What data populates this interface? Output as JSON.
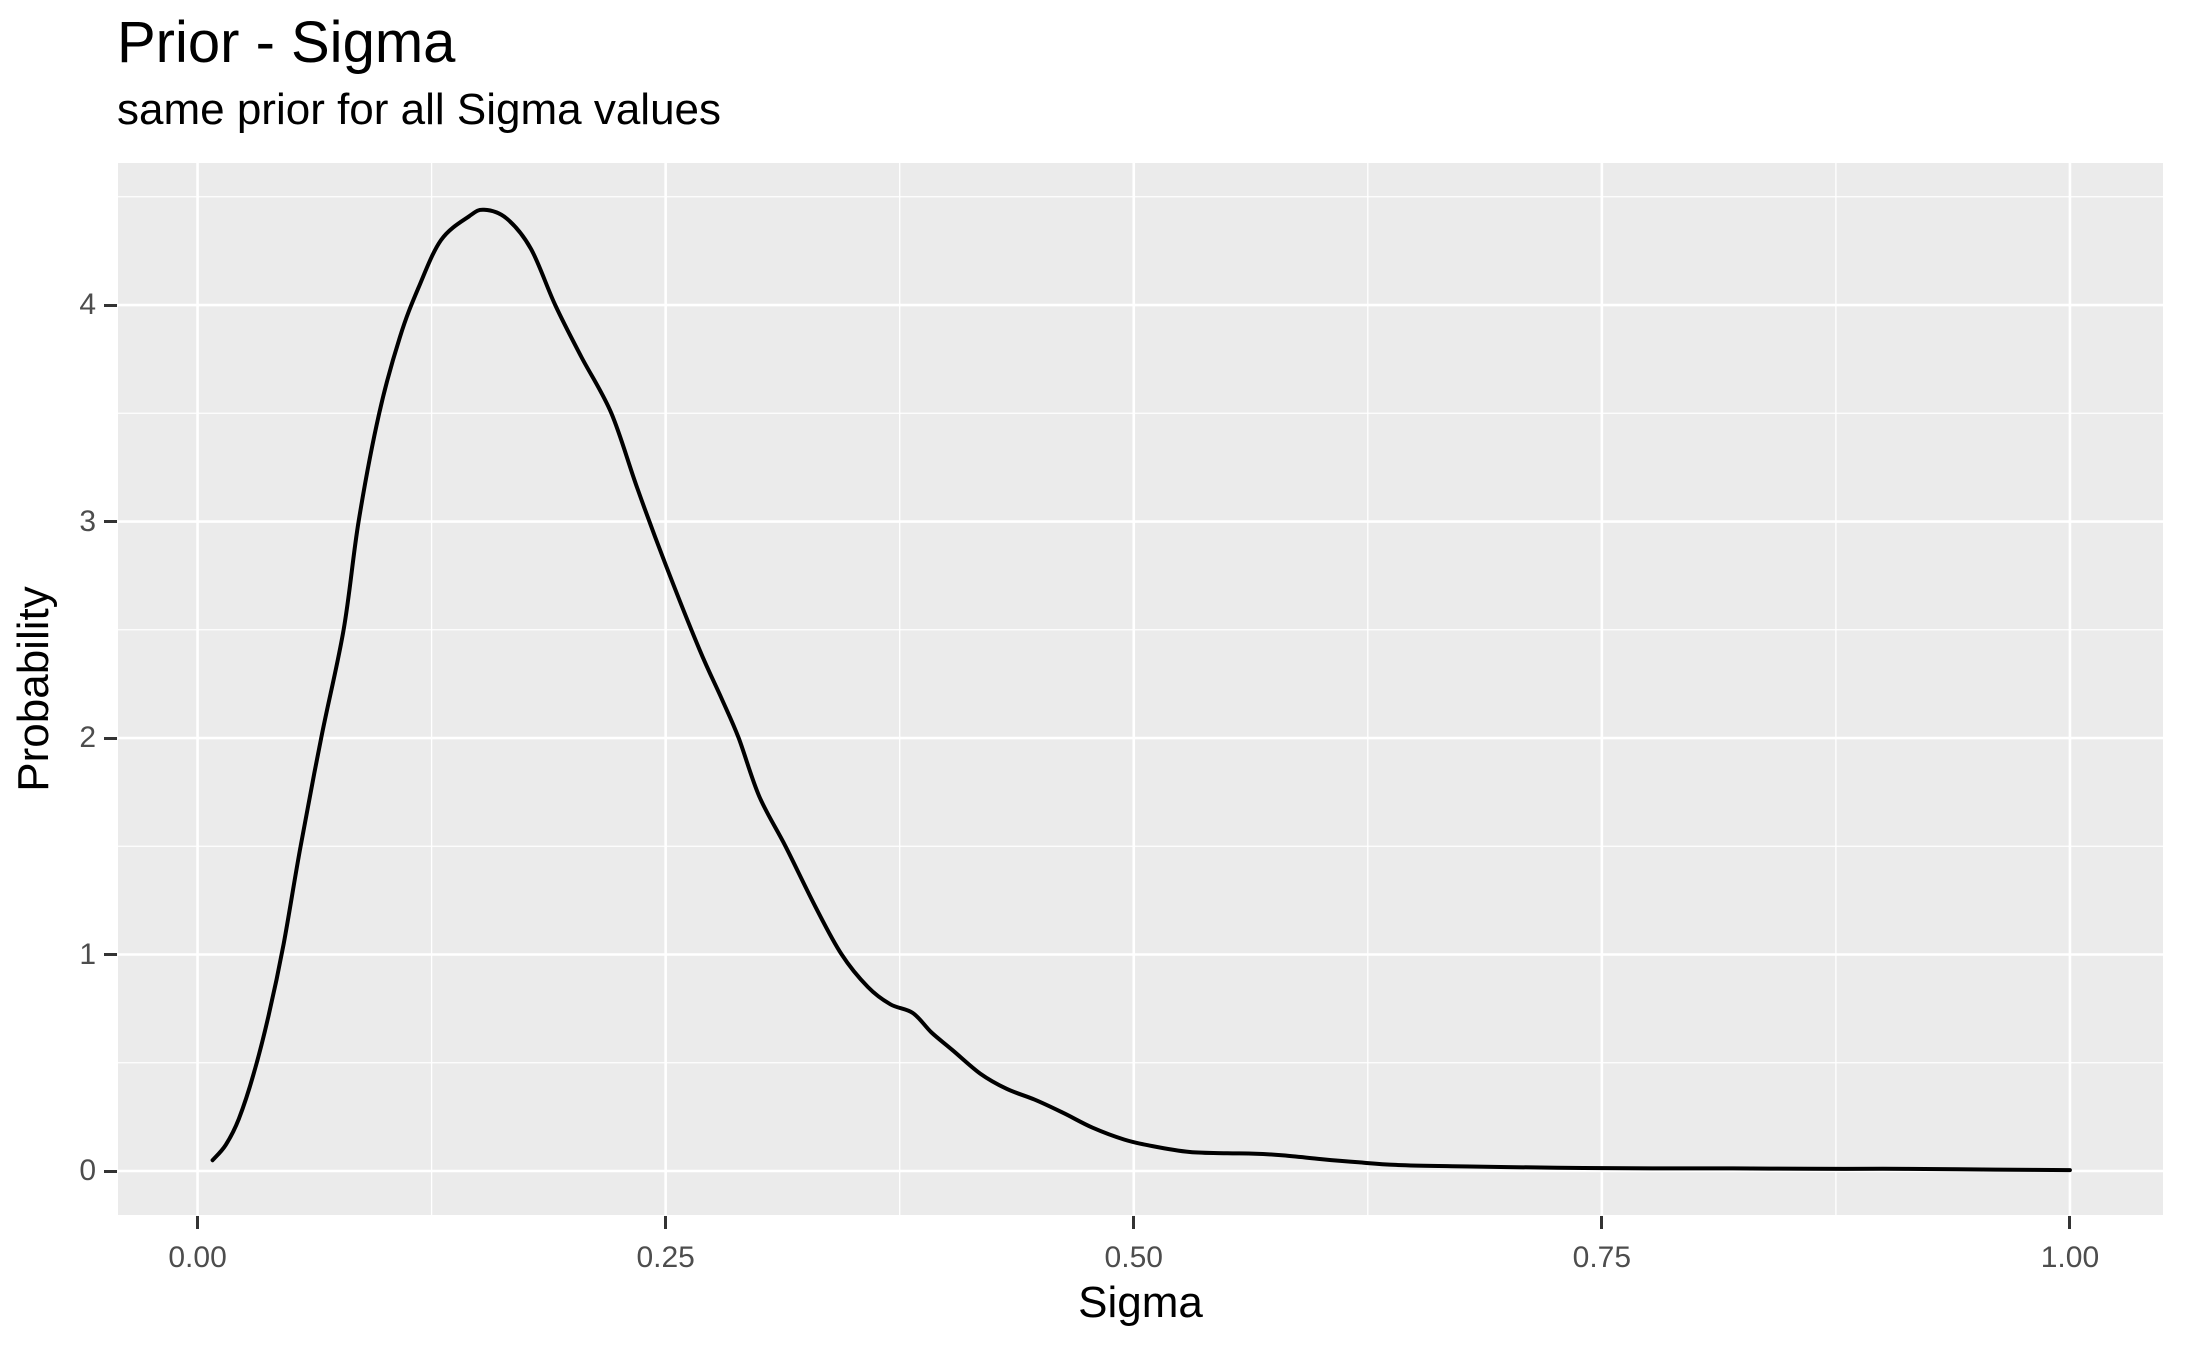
{
  "chart_data": {
    "type": "line",
    "subtype": "density",
    "title": "Prior - Sigma",
    "subtitle": "same prior for all Sigma values",
    "xlabel": "Sigma",
    "ylabel": "Probability",
    "x_domain": [
      -0.0425,
      1.0497
    ],
    "y_domain": [
      -0.2032,
      4.656
    ],
    "x_ticks": [
      {
        "value": 0.0,
        "label": "0.00"
      },
      {
        "value": 0.25,
        "label": "0.25"
      },
      {
        "value": 0.5,
        "label": "0.50"
      },
      {
        "value": 0.75,
        "label": "0.75"
      },
      {
        "value": 1.0,
        "label": "1.00"
      }
    ],
    "x_minor_ticks": [
      0.125,
      0.375,
      0.625,
      0.875
    ],
    "y_ticks": [
      {
        "value": 0,
        "label": "0"
      },
      {
        "value": 1,
        "label": "1"
      },
      {
        "value": 2,
        "label": "2"
      },
      {
        "value": 3,
        "label": "3"
      },
      {
        "value": 4,
        "label": "4"
      }
    ],
    "y_minor_ticks": [
      0.5,
      1.5,
      2.5,
      3.5,
      4.5
    ],
    "grid": true,
    "legend": "none",
    "colors": {
      "panel_background": "#EBEBEB",
      "gridline": "#FFFFFF",
      "line": "#000000",
      "tick_mark": "#333333",
      "tick_label": "#4D4D4D",
      "title_text": "#000000"
    },
    "series": [
      {
        "name": "prior density",
        "color": "#000000",
        "points": [
          [
            0.008,
            0.05
          ],
          [
            0.015,
            0.12
          ],
          [
            0.022,
            0.24
          ],
          [
            0.03,
            0.45
          ],
          [
            0.038,
            0.72
          ],
          [
            0.046,
            1.05
          ],
          [
            0.055,
            1.5
          ],
          [
            0.066,
            2.0
          ],
          [
            0.078,
            2.5
          ],
          [
            0.086,
            3.0
          ],
          [
            0.097,
            3.5
          ],
          [
            0.108,
            3.85
          ],
          [
            0.118,
            4.08
          ],
          [
            0.13,
            4.3
          ],
          [
            0.145,
            4.41
          ],
          [
            0.153,
            4.44
          ],
          [
            0.165,
            4.4
          ],
          [
            0.178,
            4.26
          ],
          [
            0.191,
            4.0
          ],
          [
            0.205,
            3.76
          ],
          [
            0.221,
            3.5
          ],
          [
            0.235,
            3.15
          ],
          [
            0.25,
            2.8
          ],
          [
            0.268,
            2.41
          ],
          [
            0.28,
            2.18
          ],
          [
            0.289,
            2.0
          ],
          [
            0.3,
            1.73
          ],
          [
            0.314,
            1.5
          ],
          [
            0.33,
            1.22
          ],
          [
            0.344,
            1.0
          ],
          [
            0.358,
            0.85
          ],
          [
            0.37,
            0.77
          ],
          [
            0.382,
            0.73
          ],
          [
            0.392,
            0.64
          ],
          [
            0.403,
            0.56
          ],
          [
            0.418,
            0.45
          ],
          [
            0.432,
            0.38
          ],
          [
            0.447,
            0.33
          ],
          [
            0.462,
            0.27
          ],
          [
            0.478,
            0.2
          ],
          [
            0.495,
            0.145
          ],
          [
            0.51,
            0.115
          ],
          [
            0.53,
            0.088
          ],
          [
            0.55,
            0.082
          ],
          [
            0.565,
            0.08
          ],
          [
            0.58,
            0.072
          ],
          [
            0.6,
            0.055
          ],
          [
            0.62,
            0.04
          ],
          [
            0.64,
            0.028
          ],
          [
            0.67,
            0.022
          ],
          [
            0.7,
            0.018
          ],
          [
            0.74,
            0.014
          ],
          [
            0.78,
            0.012
          ],
          [
            0.82,
            0.012
          ],
          [
            0.86,
            0.01
          ],
          [
            0.9,
            0.01
          ],
          [
            0.94,
            0.008
          ],
          [
            0.97,
            0.006
          ],
          [
            1.0,
            0.004
          ]
        ]
      }
    ]
  }
}
